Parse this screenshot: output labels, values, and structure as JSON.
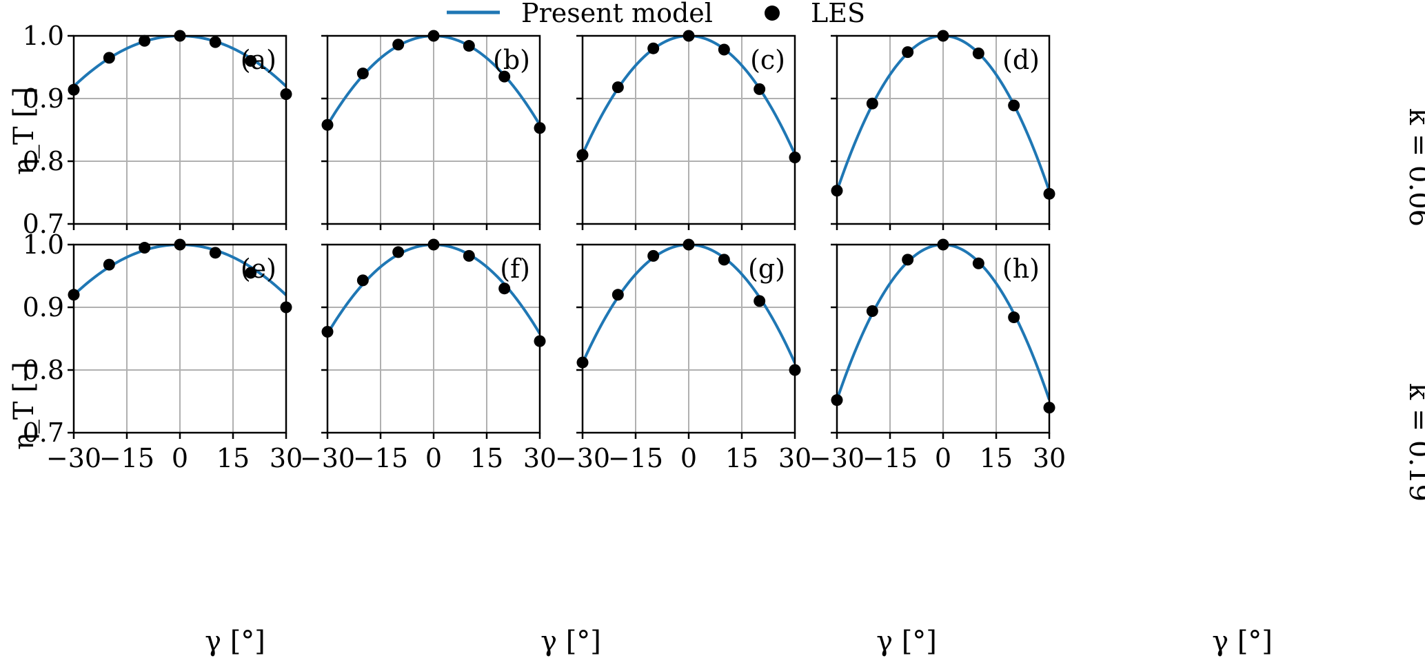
{
  "legend": {
    "items": [
      {
        "label": "Present model",
        "color": "#1f77b4",
        "marker": "line"
      },
      {
        "label": "LES",
        "color": "#000000",
        "marker": "dot"
      }
    ]
  },
  "row_labels": [
    "k = 0.06",
    "k = 0.19"
  ],
  "chart_data": {
    "type": "line",
    "layout": "grid 2 rows x 4 columns, shared axes",
    "xlabel": "γ [°]",
    "ylabel": "η_T [-]",
    "xlim": [
      -30,
      30
    ],
    "ylim": [
      0.7,
      1.0
    ],
    "xticks": [
      "−30",
      "−15",
      "0",
      "15",
      "30"
    ],
    "xtick_values": [
      -30,
      -15,
      0,
      15,
      30
    ],
    "yticks": [
      "0.7",
      "0.8",
      "0.9",
      "1.0"
    ],
    "ytick_values": [
      0.7,
      0.8,
      0.9,
      1.0
    ],
    "grid": true,
    "legend_position": "top-center",
    "line_color": "#1f77b4",
    "point_color": "#000000",
    "les_x": [
      -30,
      -20,
      -10,
      0,
      10,
      20,
      30
    ],
    "panels": [
      {
        "label": "(a)",
        "row": 0,
        "col": 0,
        "model_curvature": 8.95e-05,
        "les_y": [
          0.914,
          0.965,
          0.992,
          1.0,
          0.99,
          0.96,
          0.907
        ]
      },
      {
        "label": "(b)",
        "row": 0,
        "col": 1,
        "model_curvature": 0.000158,
        "les_y": [
          0.858,
          0.94,
          0.986,
          1.0,
          0.984,
          0.935,
          0.853
        ]
      },
      {
        "label": "(c)",
        "row": 0,
        "col": 2,
        "model_curvature": 0.00021,
        "les_y": [
          0.81,
          0.918,
          0.98,
          1.0,
          0.978,
          0.915,
          0.806
        ]
      },
      {
        "label": "(d)",
        "row": 0,
        "col": 3,
        "model_curvature": 0.000275,
        "les_y": [
          0.753,
          0.892,
          0.974,
          1.0,
          0.972,
          0.889,
          0.748
        ]
      },
      {
        "label": "(e)",
        "row": 1,
        "col": 0,
        "model_curvature": 8.95e-05,
        "les_y": [
          0.92,
          0.968,
          0.995,
          1.0,
          0.987,
          0.955,
          0.9
        ]
      },
      {
        "label": "(f)",
        "row": 1,
        "col": 1,
        "model_curvature": 0.000158,
        "les_y": [
          0.861,
          0.943,
          0.988,
          1.0,
          0.982,
          0.93,
          0.846
        ]
      },
      {
        "label": "(g)",
        "row": 1,
        "col": 2,
        "model_curvature": 0.00021,
        "les_y": [
          0.812,
          0.92,
          0.982,
          1.0,
          0.976,
          0.91,
          0.8
        ]
      },
      {
        "label": "(h)",
        "row": 1,
        "col": 3,
        "model_curvature": 0.000275,
        "les_y": [
          0.752,
          0.894,
          0.976,
          1.0,
          0.97,
          0.884,
          0.74
        ]
      }
    ]
  }
}
